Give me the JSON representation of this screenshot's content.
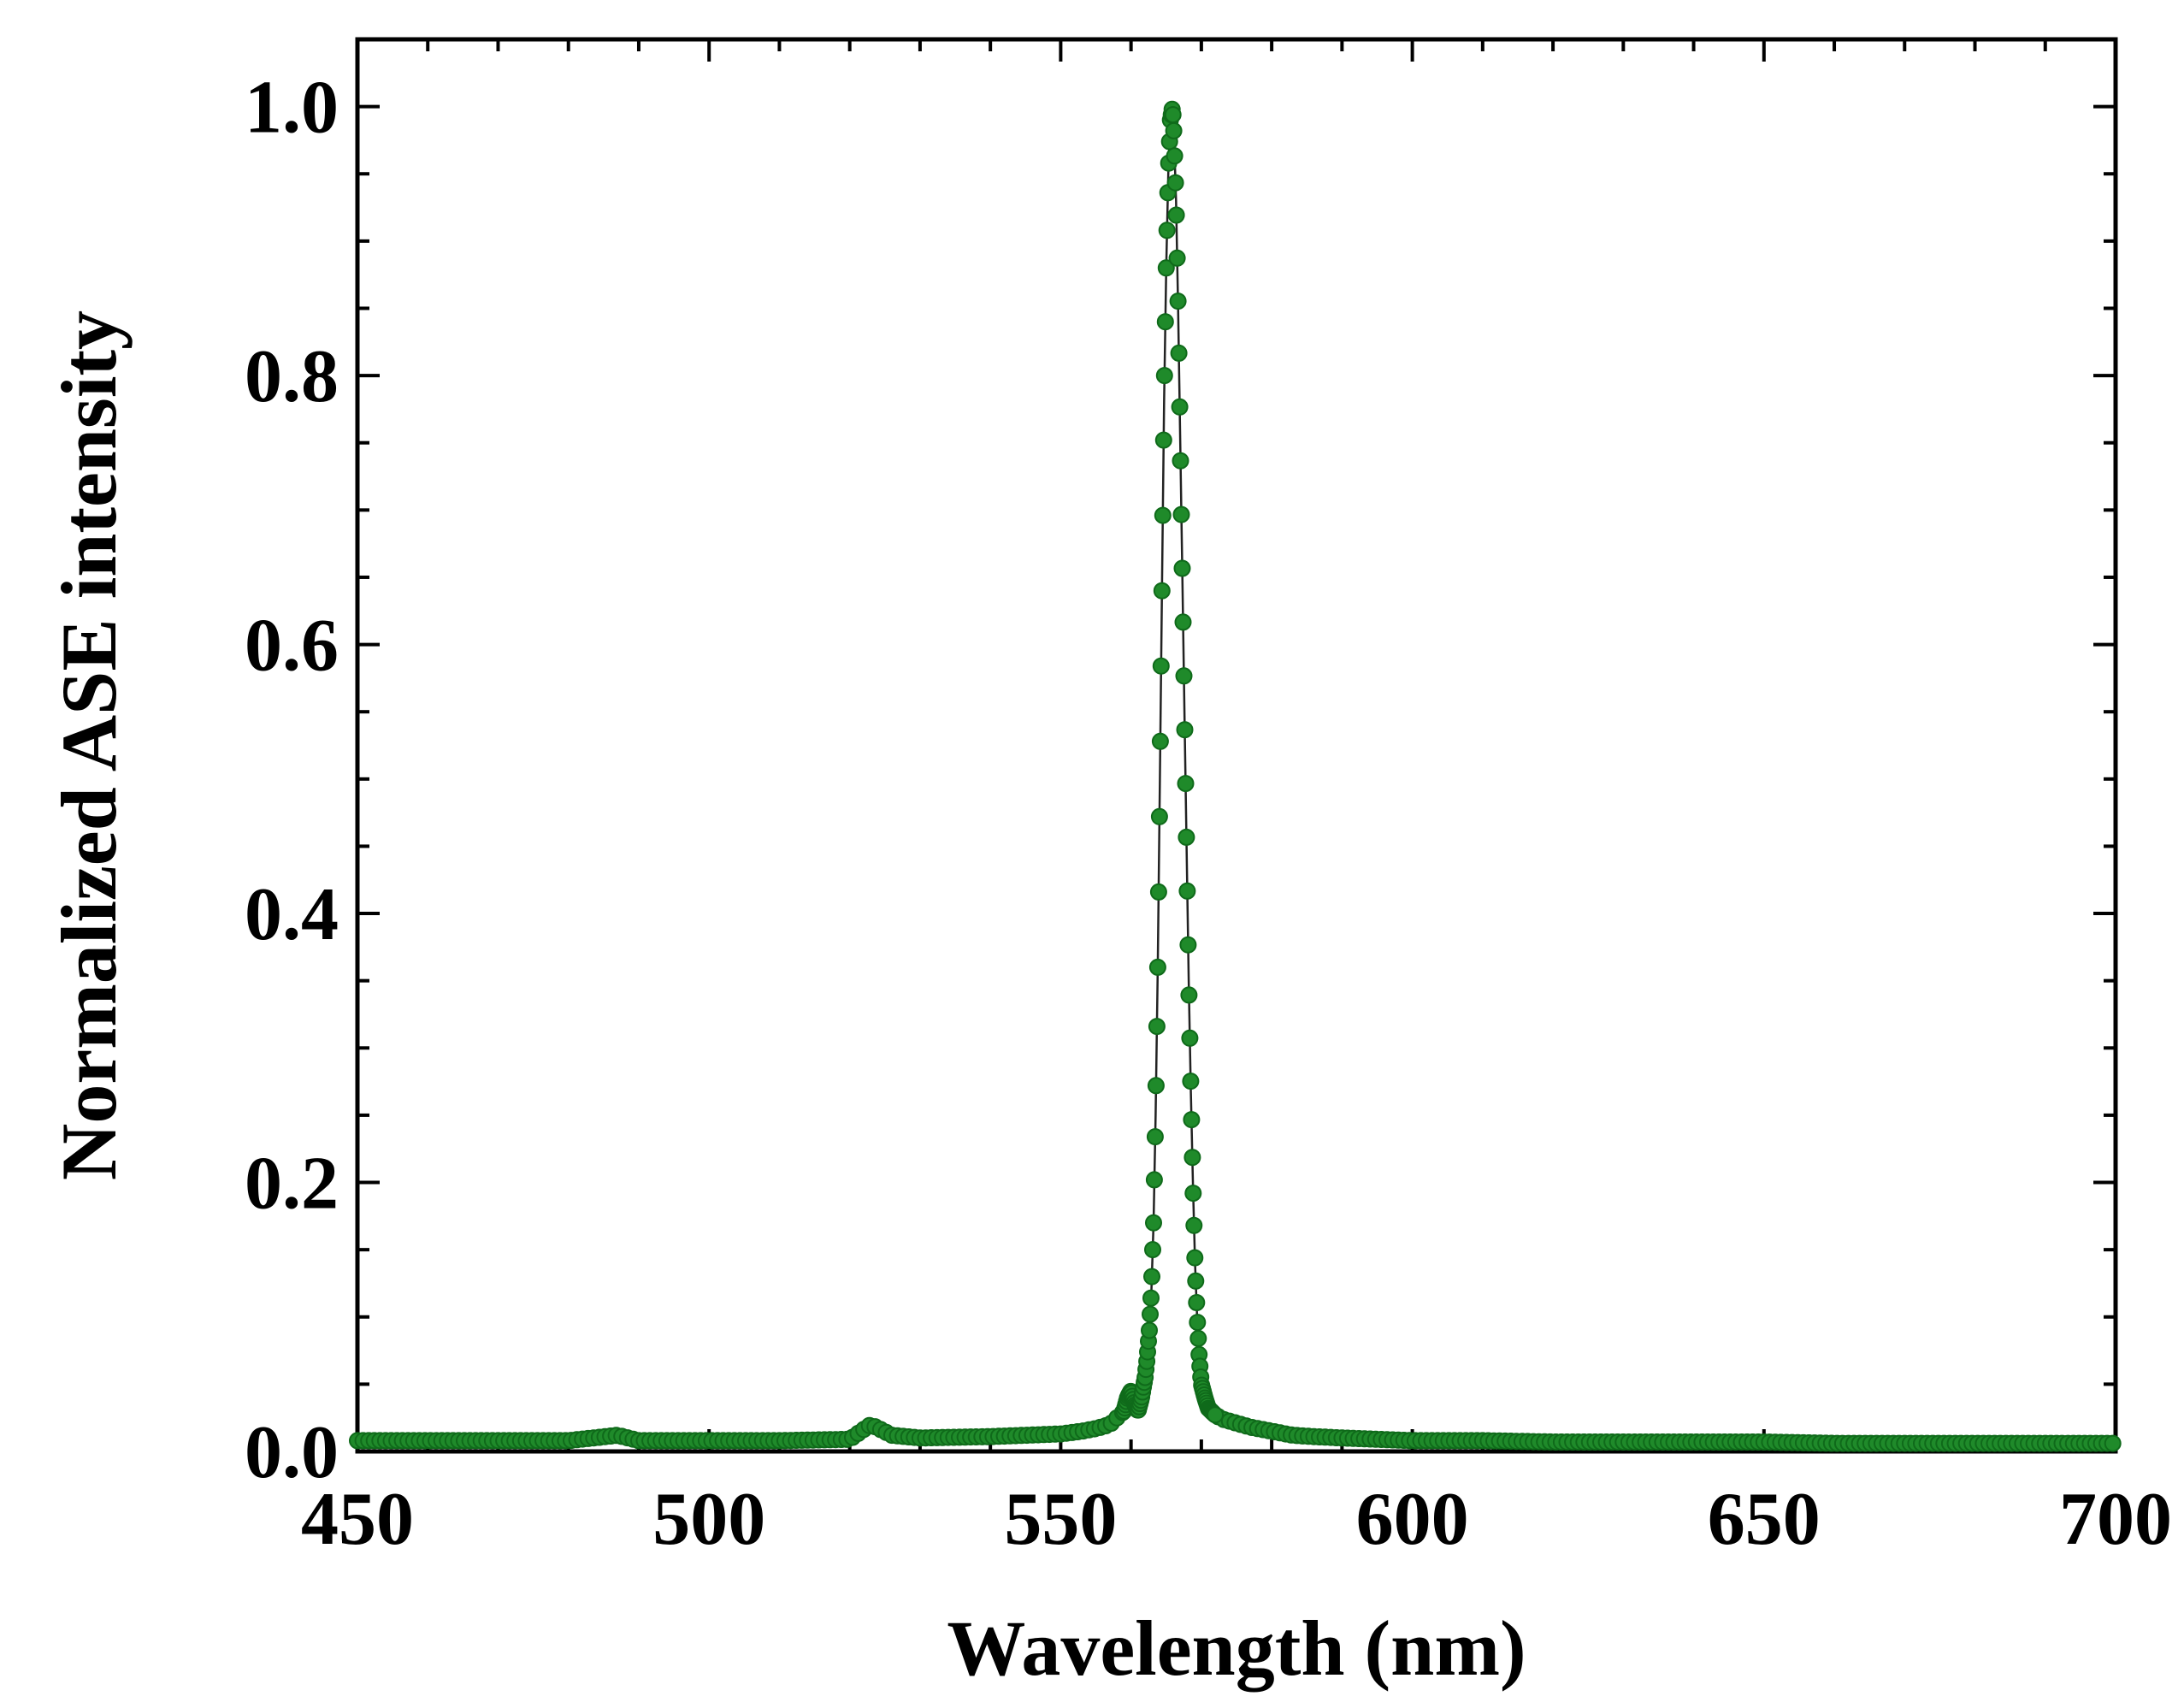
{
  "chart_data": {
    "type": "scatter",
    "title": "",
    "xlabel": "Wavelength (nm)",
    "ylabel": "Normalized ASE intensity",
    "xlim": [
      450,
      700
    ],
    "ylim": [
      0.0,
      1.05
    ],
    "xticks": [
      450,
      500,
      550,
      600,
      650,
      700
    ],
    "xtick_labels": [
      "450",
      "500",
      "550",
      "600",
      "650",
      "700"
    ],
    "yticks": [
      0.0,
      0.2,
      0.4,
      0.6,
      0.8,
      1.0
    ],
    "ytick_labels": [
      "0.0",
      "0.2",
      "0.4",
      "0.6",
      "0.8",
      "1.0"
    ],
    "grid": false,
    "legend": "none",
    "colors": {
      "marker": "#1f8a2a",
      "marker_edge": "#0f6a1a",
      "line": "#222222",
      "axis": "#000000"
    },
    "series": [
      {
        "name": "ASE spectrum",
        "x": [
          450,
          460,
          470,
          480,
          487,
          490,
          500,
          510,
          520,
          523,
          526,
          530,
          540,
          545,
          550,
          553,
          555,
          557,
          558,
          559,
          559.5,
          560,
          560.5,
          561,
          561.5,
          562,
          562.3,
          562.6,
          562.9,
          563.2,
          563.5,
          563.8,
          564.1,
          564.4,
          564.7,
          565,
          565.3,
          565.6,
          565.9,
          566.1,
          566.4,
          566.7,
          567,
          567.3,
          567.6,
          567.9,
          568.2,
          568.5,
          568.8,
          569.1,
          569.4,
          569.7,
          570,
          570.5,
          571,
          572,
          573,
          575,
          577,
          580,
          583,
          586,
          590,
          595,
          600,
          610,
          620,
          630,
          640,
          650,
          660,
          670,
          680,
          690,
          700
        ],
        "y": [
          0.008,
          0.008,
          0.008,
          0.008,
          0.012,
          0.008,
          0.008,
          0.008,
          0.009,
          0.02,
          0.012,
          0.01,
          0.011,
          0.012,
          0.013,
          0.015,
          0.017,
          0.02,
          0.025,
          0.03,
          0.04,
          0.045,
          0.035,
          0.03,
          0.04,
          0.055,
          0.07,
          0.09,
          0.12,
          0.17,
          0.25,
          0.36,
          0.5,
          0.64,
          0.78,
          0.88,
          0.95,
          0.99,
          1.0,
          0.98,
          0.93,
          0.85,
          0.75,
          0.65,
          0.55,
          0.45,
          0.35,
          0.27,
          0.2,
          0.14,
          0.1,
          0.07,
          0.05,
          0.04,
          0.032,
          0.027,
          0.024,
          0.021,
          0.018,
          0.015,
          0.012,
          0.011,
          0.01,
          0.009,
          0.008,
          0.008,
          0.007,
          0.007,
          0.007,
          0.007,
          0.006,
          0.006,
          0.006,
          0.006,
          0.006
        ]
      }
    ]
  }
}
